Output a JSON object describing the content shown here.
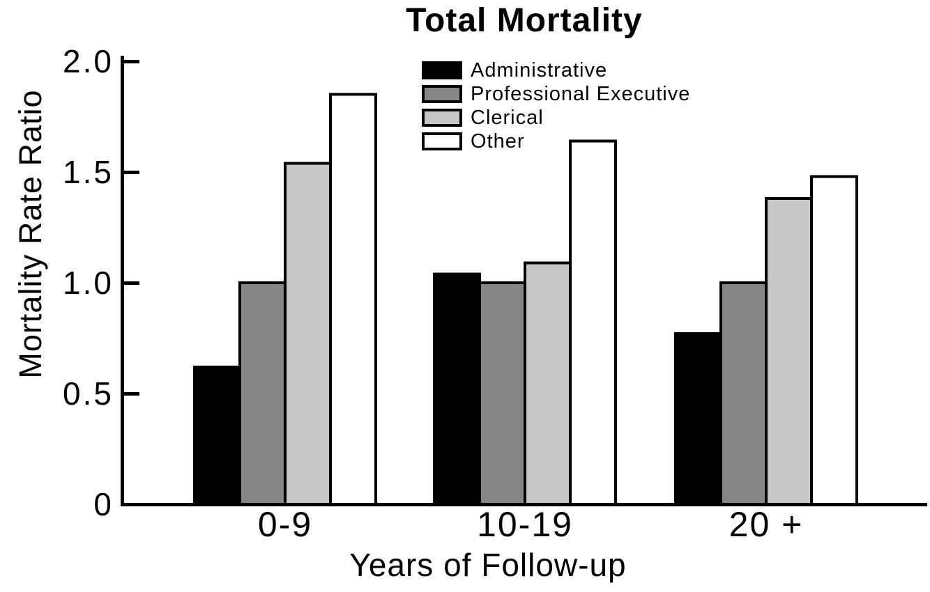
{
  "chart_data": {
    "type": "bar",
    "title": "Total Mortality",
    "xlabel": "Years of Follow-up",
    "ylabel": "Mortality Rate Ratio",
    "categories": [
      "0-9",
      "10-19",
      "20 +"
    ],
    "series": [
      {
        "name": "Administrative",
        "color": "#000000",
        "values": [
          0.62,
          1.04,
          0.77
        ]
      },
      {
        "name": "Professional Executive",
        "color": "#868686",
        "values": [
          1.0,
          1.0,
          1.0
        ]
      },
      {
        "name": "Clerical",
        "color": "#c6c6c6",
        "values": [
          1.54,
          1.09,
          1.38
        ]
      },
      {
        "name": "Other",
        "color": "#ffffff",
        "values": [
          1.85,
          1.64,
          1.48
        ]
      }
    ],
    "ylim": [
      0,
      2.0
    ],
    "yticks": [
      {
        "value": 0,
        "label": "0"
      },
      {
        "value": 0.5,
        "label": "0.5"
      },
      {
        "value": 1.0,
        "label": "1.0"
      },
      {
        "value": 1.5,
        "label": "1.5"
      },
      {
        "value": 2.0,
        "label": "2.0"
      }
    ],
    "grid": false,
    "legend_position": "top-center-inside",
    "axis_color": "#000000",
    "background": "#ffffff",
    "bar_outline_color": "#000000"
  }
}
